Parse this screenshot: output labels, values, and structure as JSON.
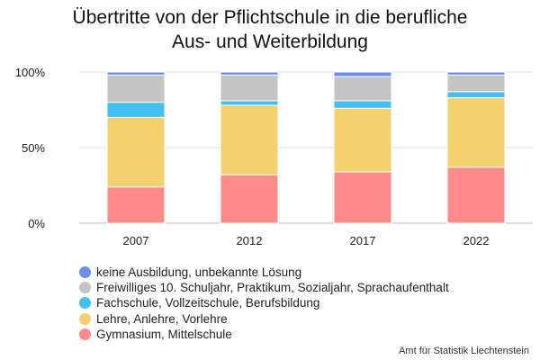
{
  "title_lines": [
    "Übertritte von der Pflichtschule in die berufliche",
    "Aus- und Weiterbildung"
  ],
  "source": "Amt für Statistik Liechtenstein",
  "chart_data": {
    "type": "bar",
    "stacked": true,
    "title": "Übertritte von der Pflichtschule in die berufliche Aus- und Weiterbildung",
    "categories": [
      "2007",
      "2012",
      "2017",
      "2022"
    ],
    "ylim": [
      0,
      100
    ],
    "yticks": [
      0,
      50,
      100
    ],
    "ytick_labels": [
      "0%",
      "50%",
      "100%"
    ],
    "grid": true,
    "legend_position": "bottom",
    "series": [
      {
        "name": "Gymnasium, Mittelschule",
        "color": "#ff8a8a",
        "values": [
          24,
          32,
          34,
          37
        ]
      },
      {
        "name": "Lehre, Anlehre, Vorlehre",
        "color": "#f5d06e",
        "values": [
          46,
          46,
          42,
          46
        ]
      },
      {
        "name": "Fachschule, Vollzeitschule, Berufsbildung",
        "color": "#44c0f0",
        "values": [
          10,
          3,
          5,
          4
        ]
      },
      {
        "name": "Freiwilliges 10. Schuljahr, Praktikum, Sozialjahr, Sprachaufenthalt",
        "color": "#c4c4c4",
        "values": [
          18,
          17,
          16,
          11
        ]
      },
      {
        "name": "keine Ausbildung, unbekannte Lösung",
        "color": "#6b8ff0",
        "values": [
          2,
          2,
          3,
          2
        ]
      }
    ]
  }
}
